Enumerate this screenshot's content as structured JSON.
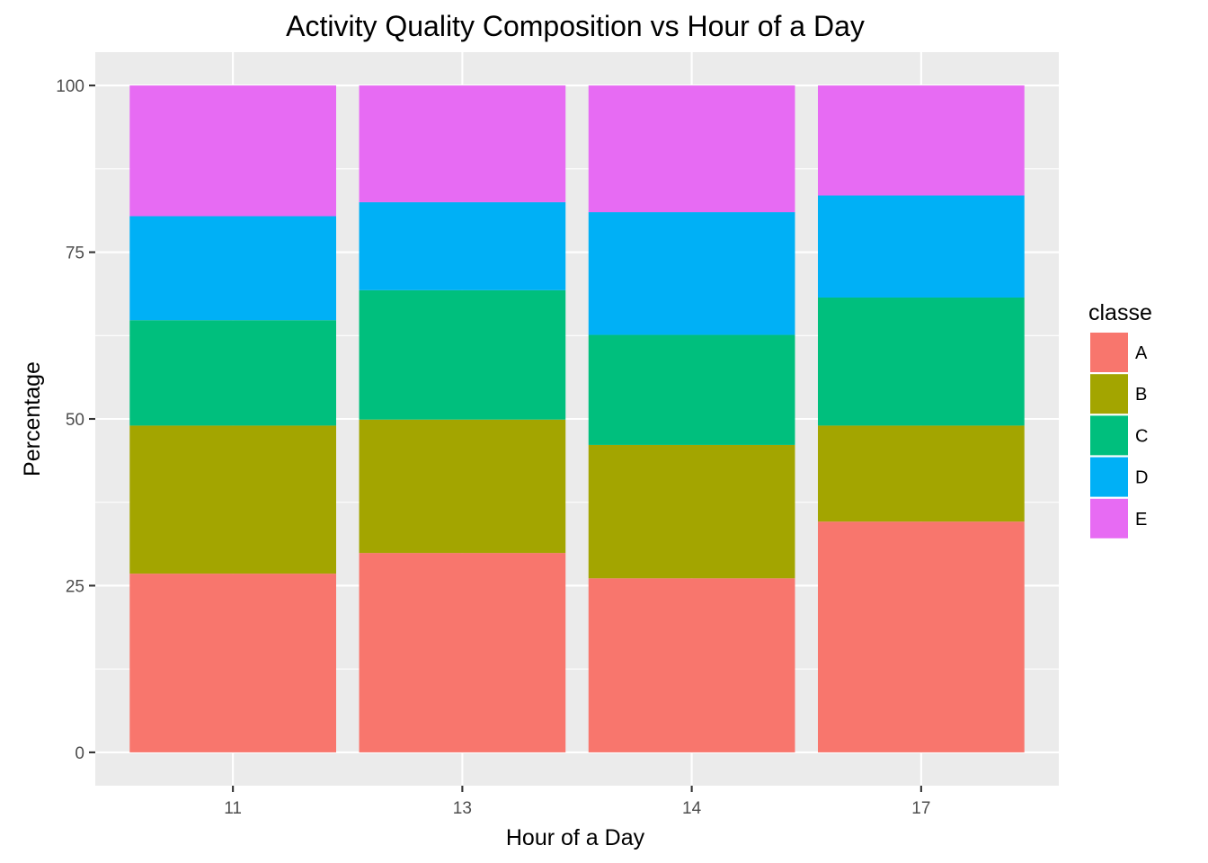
{
  "chart_data": {
    "type": "bar",
    "stacked": true,
    "title": "Activity Quality Composition vs Hour of a Day",
    "xlabel": "Hour of a Day",
    "ylabel": "Percentage",
    "categories": [
      "11",
      "13",
      "14",
      "17"
    ],
    "y_ticks": [
      "0",
      "25",
      "50",
      "75",
      "100"
    ],
    "ylim": [
      -5,
      105
    ],
    "grid": true,
    "legend": {
      "title": "classe",
      "placement": "right"
    },
    "series": [
      {
        "name": "A",
        "color": "#F8766D",
        "values": [
          26.8,
          29.9,
          26.1,
          34.6
        ]
      },
      {
        "name": "B",
        "color": "#A3A500",
        "values": [
          22.2,
          20.0,
          20.0,
          14.4
        ]
      },
      {
        "name": "C",
        "color": "#00BF7D",
        "values": [
          15.8,
          19.4,
          16.5,
          19.2
        ]
      },
      {
        "name": "D",
        "color": "#00B0F6",
        "values": [
          15.6,
          13.2,
          18.4,
          15.3
        ]
      },
      {
        "name": "E",
        "color": "#E76BF3",
        "values": [
          19.6,
          17.5,
          19.0,
          16.5
        ]
      }
    ]
  }
}
